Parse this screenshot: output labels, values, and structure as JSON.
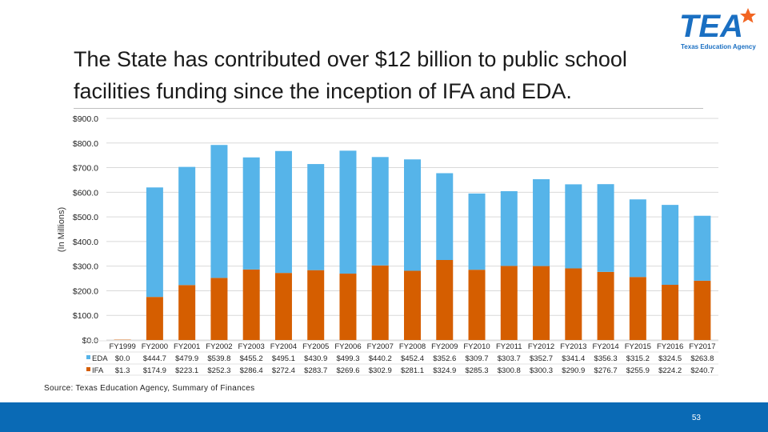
{
  "title": "The State has contributed over $12 billion to public school facilities funding since the inception of IFA and EDA.",
  "logo": {
    "wordmark": "TEA",
    "subtitle": "Texas Education Agency",
    "icon": "texas-star-logo-icon",
    "color": "#1a6fc2"
  },
  "source": "Source: Texas Education Agency, Summary of Finances",
  "page_number": "53",
  "colors": {
    "EDA": "#56b4e9",
    "IFA": "#d55e00",
    "footer": "#0a6ab5"
  },
  "chart_data": {
    "type": "bar",
    "stacked": true,
    "ylabel": "(In Millions)",
    "ylim": [
      0,
      900
    ],
    "yticks": [
      "$0.0",
      "$100.0",
      "$200.0",
      "$300.0",
      "$400.0",
      "$500.0",
      "$600.0",
      "$700.0",
      "$800.0",
      "$900.0"
    ],
    "grid": true,
    "categories": [
      "FY1999",
      "FY2000",
      "FY2001",
      "FY2002",
      "FY2003",
      "FY2004",
      "FY2005",
      "FY2006",
      "FY2007",
      "FY2008",
      "FY2009",
      "FY2010",
      "FY2011",
      "FY2012",
      "FY2013",
      "FY2014",
      "FY2015",
      "FY2016",
      "FY2017"
    ],
    "series": [
      {
        "name": "IFA",
        "values": [
          1.3,
          174.9,
          223.1,
          252.3,
          286.4,
          272.4,
          283.7,
          269.6,
          302.9,
          281.1,
          324.9,
          285.3,
          300.8,
          300.3,
          290.9,
          276.7,
          255.9,
          224.2,
          240.7
        ],
        "labels": [
          "$1.3",
          "$174.9",
          "$223.1",
          "$252.3",
          "$286.4",
          "$272.4",
          "$283.7",
          "$269.6",
          "$302.9",
          "$281.1",
          "$324.9",
          "$285.3",
          "$300.8",
          "$300.3",
          "$290.9",
          "$276.7",
          "$255.9",
          "$224.2",
          "$240.7"
        ]
      },
      {
        "name": "EDA",
        "values": [
          0.0,
          444.7,
          479.9,
          539.8,
          455.2,
          495.1,
          430.9,
          499.3,
          440.2,
          452.4,
          352.6,
          309.7,
          303.7,
          352.7,
          341.4,
          356.3,
          315.2,
          324.5,
          263.8
        ],
        "labels": [
          "$0.0",
          "$444.7",
          "$479.9",
          "$539.8",
          "$455.2",
          "$495.1",
          "$430.9",
          "$499.3",
          "$440.2",
          "$452.4",
          "$352.6",
          "$309.7",
          "$303.7",
          "$352.7",
          "$341.4",
          "$356.3",
          "$315.2",
          "$324.5",
          "$263.8"
        ]
      }
    ],
    "data_table": true,
    "table_row_order": [
      "EDA",
      "IFA"
    ]
  }
}
